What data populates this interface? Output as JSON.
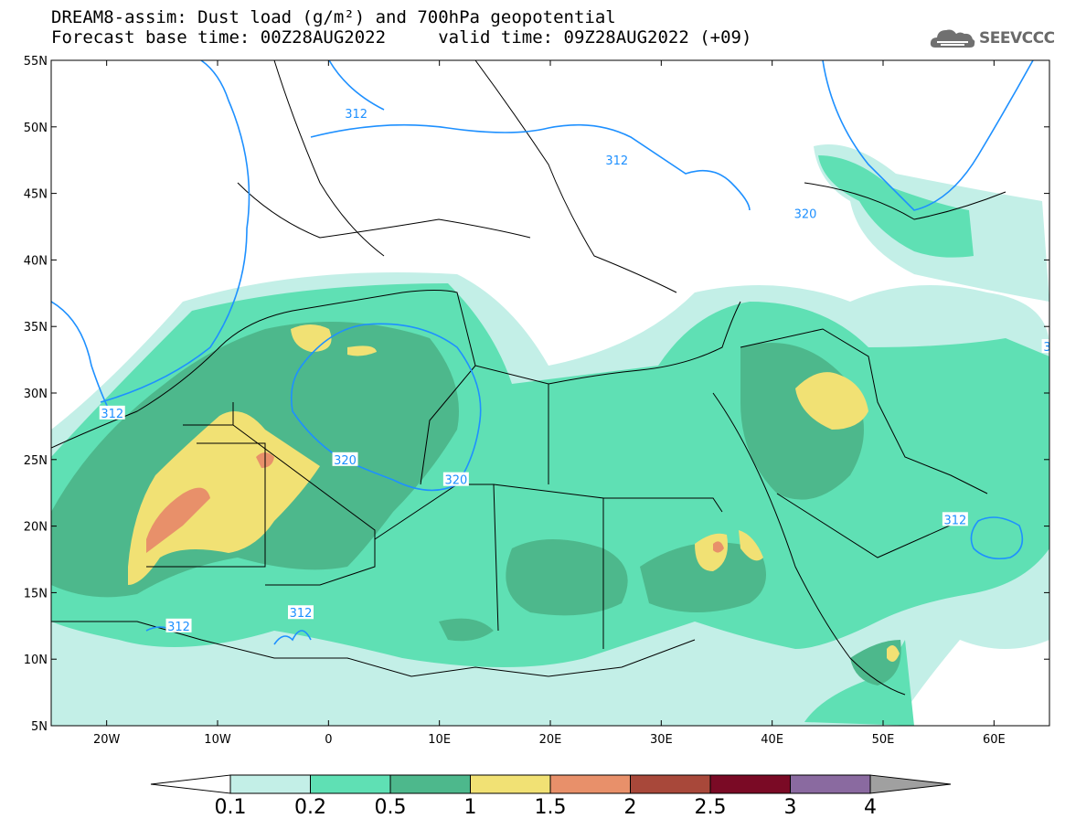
{
  "title": {
    "line1": "DREAM8-assim: Dust load (g/m²) and 700hPa geopotential",
    "line2": "Forecast base time: 00Z28AUG2022     valid time: 09Z28AUG2022 (+09)"
  },
  "logo": {
    "text": "SEEVCCC",
    "icon": "cloud-icon"
  },
  "map": {
    "lon_range": [
      -25,
      65
    ],
    "lat_range": [
      5,
      55
    ],
    "lat_ticks": [
      {
        "value": 55,
        "label": "55N"
      },
      {
        "value": 50,
        "label": "50N"
      },
      {
        "value": 45,
        "label": "45N"
      },
      {
        "value": 40,
        "label": "40N"
      },
      {
        "value": 35,
        "label": "35N"
      },
      {
        "value": 30,
        "label": "30N"
      },
      {
        "value": 25,
        "label": "25N"
      },
      {
        "value": 20,
        "label": "20N"
      },
      {
        "value": 15,
        "label": "15N"
      },
      {
        "value": 10,
        "label": "10N"
      },
      {
        "value": 5,
        "label": "5N"
      }
    ],
    "lon_ticks": [
      {
        "value": -20,
        "label": "20W"
      },
      {
        "value": -10,
        "label": "10W"
      },
      {
        "value": 0,
        "label": "0"
      },
      {
        "value": 10,
        "label": "10E"
      },
      {
        "value": 20,
        "label": "20E"
      },
      {
        "value": 30,
        "label": "30E"
      },
      {
        "value": 40,
        "label": "40E"
      },
      {
        "value": 50,
        "label": "50E"
      },
      {
        "value": 60,
        "label": "60E"
      }
    ],
    "contour_labels": [
      {
        "text": "312",
        "lon": 2.5,
        "lat": 51
      },
      {
        "text": "312",
        "lon": 26,
        "lat": 47.5
      },
      {
        "text": "320",
        "lon": 43,
        "lat": 43.5
      },
      {
        "text": "312",
        "lon": -19.5,
        "lat": 28.5
      },
      {
        "text": "320",
        "lon": 1.5,
        "lat": 25
      },
      {
        "text": "320",
        "lon": 11.5,
        "lat": 23.5
      },
      {
        "text": "312",
        "lon": 56.5,
        "lat": 20.5
      },
      {
        "text": "312",
        "lon": -13.5,
        "lat": 12.5
      },
      {
        "text": "312",
        "lon": -2.5,
        "lat": 13.5
      },
      {
        "text": "3",
        "lon": 64.8,
        "lat": 33.5
      }
    ]
  },
  "colorbar": {
    "levels": [
      "0.1",
      "0.2",
      "0.5",
      "1",
      "1.5",
      "2",
      "2.5",
      "3",
      "4"
    ],
    "colors": [
      "#c3efe7",
      "#5fe0b4",
      "#4db88c",
      "#f1e174",
      "#e8906a",
      "#a8483a",
      "#7a0a25",
      "#8a6aa0"
    ],
    "under_color": "#ffffff",
    "over_color": "#a0a0a0"
  },
  "style": {
    "contour_color": "#1e90ff",
    "border_color": "#000000"
  }
}
